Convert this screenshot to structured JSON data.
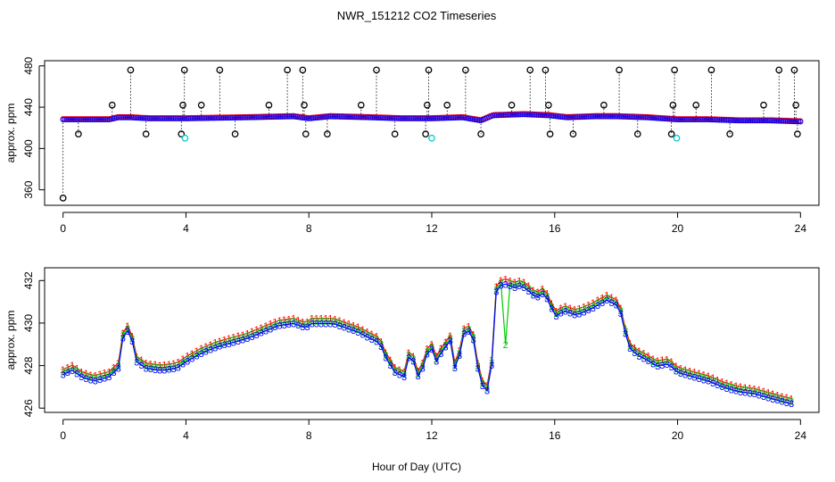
{
  "title": "NWR_151212  CO2 Timeseries",
  "xlabel": "Hour of Day (UTC)",
  "colors": {
    "series1": "#ff0000",
    "series2": "#00cc00",
    "series3": "#0000ff",
    "outlier": "#000000",
    "flag": "#00cccc"
  },
  "chart_data": [
    {
      "type": "scatter",
      "panel": "top",
      "ylabel": "approx. ppm",
      "xlim": [
        -0.6,
        24.6
      ],
      "ylim": [
        345,
        485
      ],
      "xticks": [
        0,
        4,
        8,
        12,
        16,
        20,
        24
      ],
      "yticks": [
        360,
        400,
        440,
        480
      ],
      "baseline": [
        [
          0,
          428
        ],
        [
          1.5,
          428
        ],
        [
          1.8,
          430
        ],
        [
          2.2,
          430
        ],
        [
          2.8,
          429
        ],
        [
          4,
          429
        ],
        [
          6,
          430
        ],
        [
          7.5,
          431
        ],
        [
          8,
          429
        ],
        [
          8.7,
          431
        ],
        [
          10,
          430
        ],
        [
          11,
          429
        ],
        [
          12,
          429
        ],
        [
          13,
          430
        ],
        [
          13.6,
          427
        ],
        [
          14,
          432
        ],
        [
          15,
          433
        ],
        [
          15.8,
          432
        ],
        [
          16.4,
          430
        ],
        [
          17.3,
          431
        ],
        [
          18,
          431
        ],
        [
          19,
          430
        ],
        [
          20,
          428
        ],
        [
          21,
          428
        ],
        [
          22,
          427
        ],
        [
          23,
          427
        ],
        [
          24,
          426
        ]
      ],
      "outliers": [
        {
          "x": 0.0,
          "y": 352
        },
        {
          "x": 0.5,
          "y": 414
        },
        {
          "x": 1.6,
          "y": 442
        },
        {
          "x": 2.2,
          "y": 476
        },
        {
          "x": 2.7,
          "y": 414
        },
        {
          "x": 3.85,
          "y": 414
        },
        {
          "x": 3.9,
          "y": 442
        },
        {
          "x": 3.95,
          "y": 476
        },
        {
          "x": 4.5,
          "y": 442
        },
        {
          "x": 5.1,
          "y": 476
        },
        {
          "x": 5.6,
          "y": 414
        },
        {
          "x": 6.7,
          "y": 442
        },
        {
          "x": 7.3,
          "y": 476
        },
        {
          "x": 7.8,
          "y": 476
        },
        {
          "x": 7.85,
          "y": 442
        },
        {
          "x": 7.9,
          "y": 414
        },
        {
          "x": 8.6,
          "y": 414
        },
        {
          "x": 9.7,
          "y": 442
        },
        {
          "x": 10.2,
          "y": 476
        },
        {
          "x": 10.8,
          "y": 414
        },
        {
          "x": 11.8,
          "y": 414
        },
        {
          "x": 11.85,
          "y": 442
        },
        {
          "x": 11.9,
          "y": 476
        },
        {
          "x": 12.5,
          "y": 442
        },
        {
          "x": 13.1,
          "y": 476
        },
        {
          "x": 13.6,
          "y": 414
        },
        {
          "x": 14.6,
          "y": 442
        },
        {
          "x": 15.2,
          "y": 476
        },
        {
          "x": 15.7,
          "y": 476
        },
        {
          "x": 15.8,
          "y": 442
        },
        {
          "x": 15.85,
          "y": 414
        },
        {
          "x": 16.6,
          "y": 414
        },
        {
          "x": 17.6,
          "y": 442
        },
        {
          "x": 18.1,
          "y": 476
        },
        {
          "x": 18.7,
          "y": 414
        },
        {
          "x": 19.8,
          "y": 414
        },
        {
          "x": 19.85,
          "y": 442
        },
        {
          "x": 19.9,
          "y": 476
        },
        {
          "x": 20.6,
          "y": 442
        },
        {
          "x": 21.1,
          "y": 476
        },
        {
          "x": 21.7,
          "y": 414
        },
        {
          "x": 22.8,
          "y": 442
        },
        {
          "x": 23.3,
          "y": 476
        },
        {
          "x": 23.8,
          "y": 476
        },
        {
          "x": 23.85,
          "y": 442
        },
        {
          "x": 23.9,
          "y": 414
        }
      ],
      "flags": [
        {
          "x": 3.97,
          "y": 410
        },
        {
          "x": 12.0,
          "y": 410
        },
        {
          "x": 19.97,
          "y": 410
        }
      ]
    },
    {
      "type": "line",
      "panel": "bottom",
      "ylabel": "approx. ppm",
      "xlim": [
        -0.6,
        24.6
      ],
      "ylim": [
        425.8,
        432.6
      ],
      "xticks": [
        0,
        4,
        8,
        12,
        16,
        20,
        24
      ],
      "yticks": [
        426,
        428,
        430,
        432
      ],
      "series": [
        {
          "name": "1",
          "marker": "1"
        },
        {
          "name": "2",
          "marker": "2"
        },
        {
          "name": "3",
          "marker": "3"
        }
      ],
      "profile": [
        [
          0.0,
          427.7
        ],
        [
          0.3,
          427.9
        ],
        [
          0.6,
          427.6
        ],
        [
          1.0,
          427.4
        ],
        [
          1.5,
          427.6
        ],
        [
          1.8,
          428.0
        ],
        [
          2.0,
          429.9
        ],
        [
          2.2,
          429.6
        ],
        [
          2.4,
          428.3
        ],
        [
          2.7,
          428.0
        ],
        [
          3.2,
          427.9
        ],
        [
          3.7,
          428.0
        ],
        [
          4.0,
          428.3
        ],
        [
          4.5,
          428.7
        ],
        [
          5.0,
          429.0
        ],
        [
          5.5,
          429.2
        ],
        [
          6.0,
          429.4
        ],
        [
          6.5,
          429.7
        ],
        [
          7.0,
          430.0
        ],
        [
          7.5,
          430.1
        ],
        [
          7.9,
          429.9
        ],
        [
          8.1,
          430.1
        ],
        [
          8.8,
          430.1
        ],
        [
          9.2,
          429.9
        ],
        [
          9.6,
          429.7
        ],
        [
          10.0,
          429.4
        ],
        [
          10.3,
          429.2
        ],
        [
          10.5,
          428.5
        ],
        [
          10.8,
          427.8
        ],
        [
          11.1,
          427.6
        ],
        [
          11.3,
          428.8
        ],
        [
          11.6,
          427.4
        ],
        [
          11.8,
          428.6
        ],
        [
          12.0,
          428.9
        ],
        [
          12.1,
          428.2
        ],
        [
          12.3,
          428.7
        ],
        [
          12.6,
          429.3
        ],
        [
          12.8,
          427.6
        ],
        [
          13.0,
          429.6
        ],
        [
          13.3,
          429.8
        ],
        [
          13.5,
          428.0
        ],
        [
          13.7,
          426.9
        ],
        [
          13.9,
          427.0
        ],
        [
          14.1,
          431.6
        ],
        [
          14.3,
          432.0
        ],
        [
          14.5,
          431.9
        ],
        [
          14.7,
          431.8
        ],
        [
          14.9,
          431.9
        ],
        [
          15.1,
          431.7
        ],
        [
          15.4,
          431.3
        ],
        [
          15.6,
          431.5
        ],
        [
          15.8,
          431.2
        ],
        [
          16.0,
          430.4
        ],
        [
          16.3,
          430.7
        ],
        [
          16.7,
          430.5
        ],
        [
          17.2,
          430.8
        ],
        [
          17.7,
          431.2
        ],
        [
          18.1,
          430.9
        ],
        [
          18.4,
          429.0
        ],
        [
          18.7,
          428.6
        ],
        [
          19.0,
          428.4
        ],
        [
          19.3,
          428.1
        ],
        [
          19.7,
          428.2
        ],
        [
          20.0,
          427.8
        ],
        [
          20.5,
          427.6
        ],
        [
          21.0,
          427.4
        ],
        [
          21.5,
          427.1
        ],
        [
          22.0,
          426.9
        ],
        [
          22.5,
          426.8
        ],
        [
          23.0,
          426.6
        ],
        [
          23.5,
          426.4
        ],
        [
          23.8,
          426.3
        ]
      ],
      "offsets": [
        0.12,
        0.0,
        -0.12
      ]
    }
  ]
}
